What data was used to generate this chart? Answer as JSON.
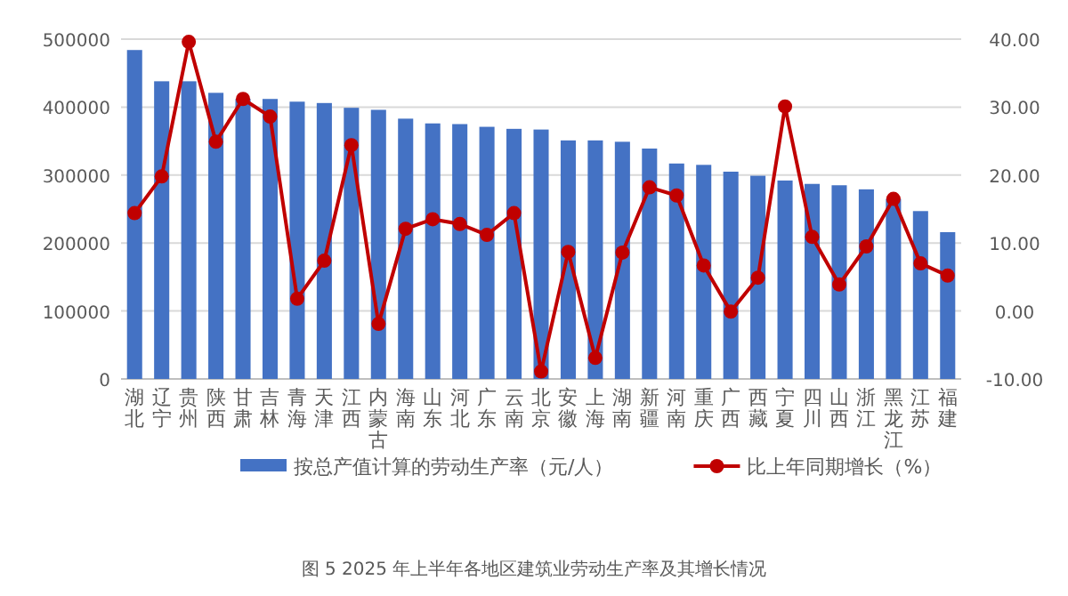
{
  "chart_data": {
    "type": "bar",
    "categories": [
      "湖北",
      "辽宁",
      "贵州",
      "陕西",
      "甘肃",
      "吉林",
      "青海",
      "天津",
      "江西",
      "内蒙古",
      "海南",
      "山东",
      "河北",
      "广东",
      "云南",
      "北京",
      "安徽",
      "上海",
      "湖南",
      "新疆",
      "河南",
      "重庆",
      "广西",
      "西藏",
      "宁夏",
      "四川",
      "山西",
      "浙江",
      "黑龙江",
      "江苏",
      "福建"
    ],
    "series": [
      {
        "name": "按总产值计算的劳动生产率（元/人）",
        "color": "#4472c4",
        "values": [
          484000,
          438000,
          438000,
          421000,
          412000,
          412000,
          408000,
          406000,
          399000,
          396000,
          383000,
          376000,
          375000,
          371000,
          368000,
          367000,
          351000,
          351000,
          349000,
          339000,
          317000,
          315000,
          305000,
          299000,
          292000,
          287000,
          285000,
          279000,
          265000,
          247000,
          216000
        ]
      },
      {
        "name": "比上年同期增长（%）",
        "type": "line",
        "axis": "y2",
        "color": "#c00000",
        "marker": "circle",
        "values": [
          14.4,
          19.8,
          39.6,
          24.9,
          31.2,
          28.6,
          1.8,
          7.4,
          24.4,
          -1.9,
          12.1,
          13.5,
          12.8,
          11.2,
          14.4,
          -8.9,
          8.7,
          -6.9,
          8.6,
          18.2,
          17.0,
          6.7,
          -0.1,
          4.9,
          30.1,
          10.9,
          3.9,
          9.5,
          16.5,
          7.0,
          5.2
        ]
      }
    ],
    "ylim": [
      0,
      500000
    ],
    "yticks": [
      0,
      100000,
      200000,
      300000,
      400000,
      500000
    ],
    "y2lim": [
      -10,
      40
    ],
    "y2ticks": [
      {
        "value": -10,
        "label": "-10.00"
      },
      {
        "value": 0,
        "label": "0.00"
      },
      {
        "value": 10,
        "label": "10.00"
      },
      {
        "value": 20,
        "label": "20.00"
      },
      {
        "value": 30,
        "label": "30.00"
      },
      {
        "value": 40,
        "label": "40.00"
      }
    ],
    "grid": "y",
    "legend": "bottom",
    "annotations": [
      "图 5 2025 年上半年各地区建筑业劳动生产率及其增长情况"
    ]
  }
}
